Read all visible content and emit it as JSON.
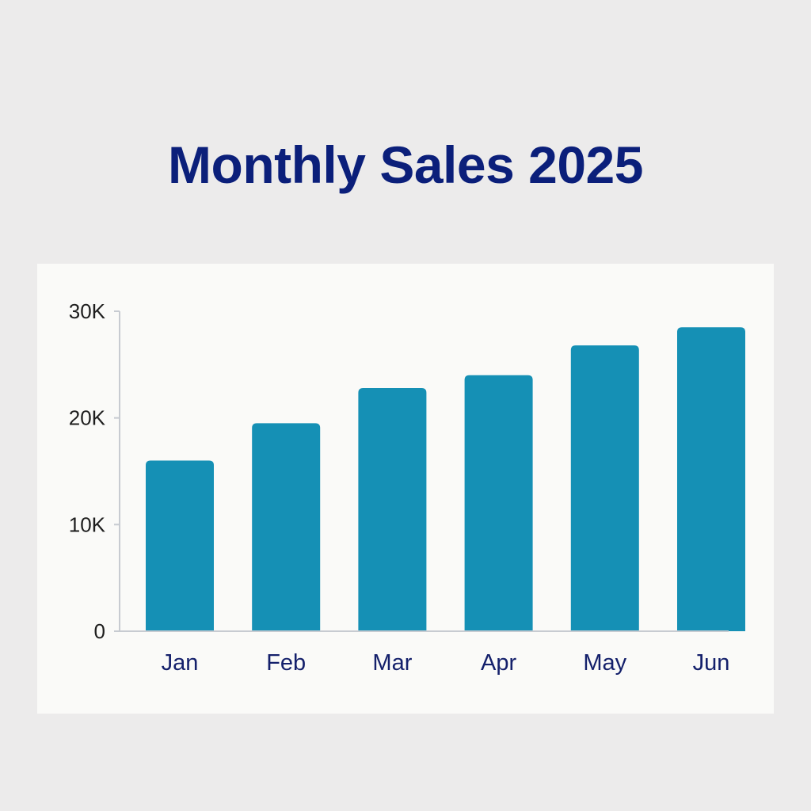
{
  "title": "Monthly Sales 2025",
  "chart_data": {
    "type": "bar",
    "title": "Monthly Sales 2025",
    "xlabel": "",
    "ylabel": "",
    "categories": [
      "Jan",
      "Feb",
      "Mar",
      "Apr",
      "May",
      "Jun"
    ],
    "values": [
      16000,
      19500,
      22800,
      24000,
      26800,
      28500
    ],
    "ylim": [
      0,
      30000
    ],
    "yticks": [
      {
        "value": 0,
        "label": "0"
      },
      {
        "value": 10000,
        "label": "10K"
      },
      {
        "value": 20000,
        "label": "20K"
      },
      {
        "value": 30000,
        "label": "30K"
      }
    ],
    "grid": false,
    "legend": "none",
    "colors": {
      "bar": "#1590b5",
      "axis": "#c7cbd1",
      "title": "#0b1f7a",
      "category_label": "#14206b",
      "tick_label": "#1d1d1d"
    }
  }
}
